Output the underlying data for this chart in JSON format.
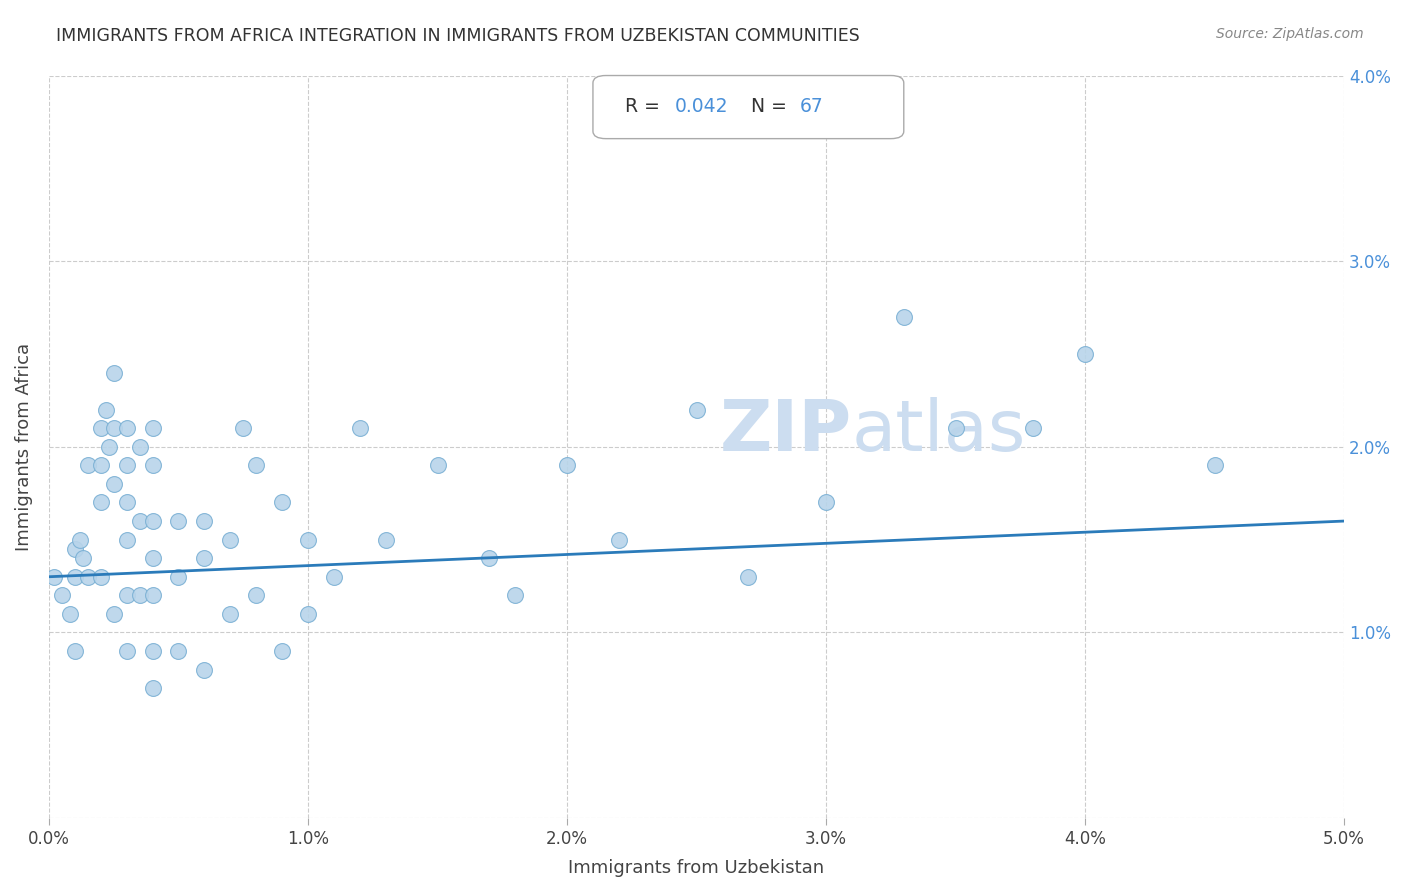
{
  "title": "IMMIGRANTS FROM AFRICA INTEGRATION IN IMMIGRANTS FROM UZBEKISTAN COMMUNITIES",
  "source": "Source: ZipAtlas.com",
  "xlabel": "Immigrants from Uzbekistan",
  "ylabel": "Immigrants from Africa",
  "R": 0.042,
  "N": 67,
  "xlim": [
    0.0,
    0.05
  ],
  "ylim": [
    0.0,
    0.04
  ],
  "xtick_vals": [
    0.0,
    0.01,
    0.02,
    0.03,
    0.04,
    0.05
  ],
  "ytick_vals": [
    0.0,
    0.01,
    0.02,
    0.03,
    0.04
  ],
  "xtick_labels": [
    "0.0%",
    "1.0%",
    "2.0%",
    "3.0%",
    "4.0%",
    "5.0%"
  ],
  "ytick_labels_right": [
    "",
    "1.0%",
    "2.0%",
    "3.0%",
    "4.0%"
  ],
  "scatter_color": "#b8d4ea",
  "scatter_edge_color": "#7ab0d4",
  "line_color": "#2b7bba",
  "watermark_color": "#ccddf0",
  "background_color": "#ffffff",
  "grid_color": "#cccccc",
  "scatter_x": [
    0.0002,
    0.0005,
    0.0008,
    0.001,
    0.001,
    0.001,
    0.0012,
    0.0013,
    0.0015,
    0.0015,
    0.002,
    0.002,
    0.002,
    0.002,
    0.0022,
    0.0023,
    0.0025,
    0.0025,
    0.0025,
    0.0025,
    0.003,
    0.003,
    0.003,
    0.003,
    0.003,
    0.003,
    0.0035,
    0.0035,
    0.0035,
    0.004,
    0.004,
    0.004,
    0.004,
    0.004,
    0.004,
    0.004,
    0.005,
    0.005,
    0.005,
    0.006,
    0.006,
    0.006,
    0.007,
    0.007,
    0.0075,
    0.008,
    0.008,
    0.009,
    0.009,
    0.01,
    0.01,
    0.011,
    0.012,
    0.013,
    0.015,
    0.017,
    0.018,
    0.02,
    0.022,
    0.025,
    0.027,
    0.03,
    0.033,
    0.035,
    0.038,
    0.04,
    0.045
  ],
  "scatter_y": [
    0.013,
    0.012,
    0.011,
    0.0145,
    0.013,
    0.009,
    0.015,
    0.014,
    0.019,
    0.013,
    0.021,
    0.019,
    0.017,
    0.013,
    0.022,
    0.02,
    0.024,
    0.021,
    0.018,
    0.011,
    0.021,
    0.019,
    0.017,
    0.015,
    0.012,
    0.009,
    0.02,
    0.016,
    0.012,
    0.021,
    0.019,
    0.016,
    0.014,
    0.012,
    0.009,
    0.007,
    0.016,
    0.013,
    0.009,
    0.016,
    0.014,
    0.008,
    0.015,
    0.011,
    0.021,
    0.019,
    0.012,
    0.017,
    0.009,
    0.015,
    0.011,
    0.013,
    0.021,
    0.015,
    0.019,
    0.014,
    0.012,
    0.019,
    0.015,
    0.022,
    0.013,
    0.017,
    0.027,
    0.021,
    0.021,
    0.025,
    0.019
  ],
  "line_x": [
    0.0,
    0.05
  ],
  "line_y": [
    0.013,
    0.016
  ]
}
